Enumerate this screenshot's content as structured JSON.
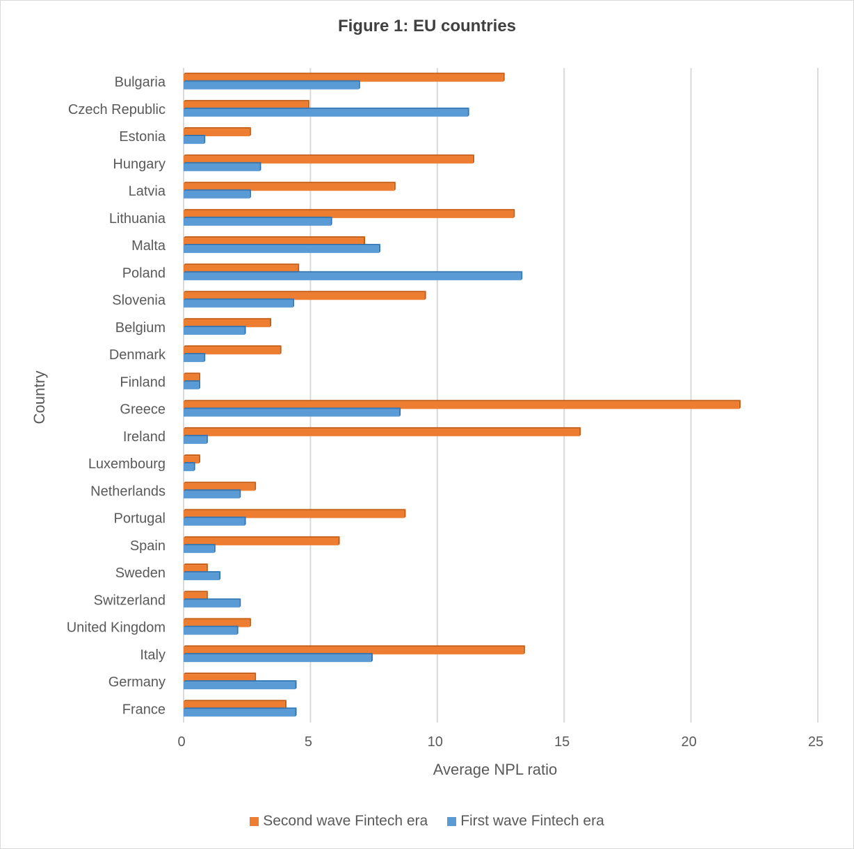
{
  "chart_data": {
    "type": "bar",
    "orientation": "horizontal",
    "title": "Figure 1: EU countries",
    "xlabel": "Average NPL ratio",
    "ylabel": "Country",
    "xlim": [
      0,
      25
    ],
    "xticks": [
      "0",
      "5",
      "10",
      "15",
      "20",
      "25"
    ],
    "grid": true,
    "legend_position": "bottom",
    "categories": [
      "Bulgaria",
      "Czech Republic",
      "Estonia",
      "Hungary",
      "Latvia",
      "Lithuania",
      "Malta",
      "Poland",
      "Slovenia",
      "Belgium",
      "Denmark",
      "Finland",
      "Greece",
      "Ireland",
      "Luxembourg",
      "Netherlands",
      "Portugal",
      "Spain",
      "Sweden",
      "Switzerland",
      "United Kingdom",
      "Italy",
      "Germany",
      "France"
    ],
    "series": [
      {
        "name": "Second wave Fintech era",
        "color": "#ed7d31",
        "values": [
          12.6,
          4.9,
          2.6,
          11.4,
          8.3,
          13.0,
          7.1,
          4.5,
          9.5,
          3.4,
          3.8,
          0.6,
          21.9,
          15.6,
          0.6,
          2.8,
          8.7,
          6.1,
          0.9,
          0.9,
          2.6,
          13.4,
          2.8,
          4.0
        ]
      },
      {
        "name": "First wave Fintech era",
        "color": "#5b9bd5",
        "values": [
          6.9,
          11.2,
          0.8,
          3.0,
          2.6,
          5.8,
          7.7,
          13.3,
          4.3,
          2.4,
          0.8,
          0.6,
          8.5,
          0.9,
          0.4,
          2.2,
          2.4,
          1.2,
          1.4,
          2.2,
          2.1,
          7.4,
          4.4,
          4.4
        ]
      }
    ]
  },
  "legend_items": [
    {
      "label": "Second wave Fintech era",
      "color": "#ed7d31"
    },
    {
      "label": "First wave Fintech era",
      "color": "#5b9bd5"
    }
  ]
}
